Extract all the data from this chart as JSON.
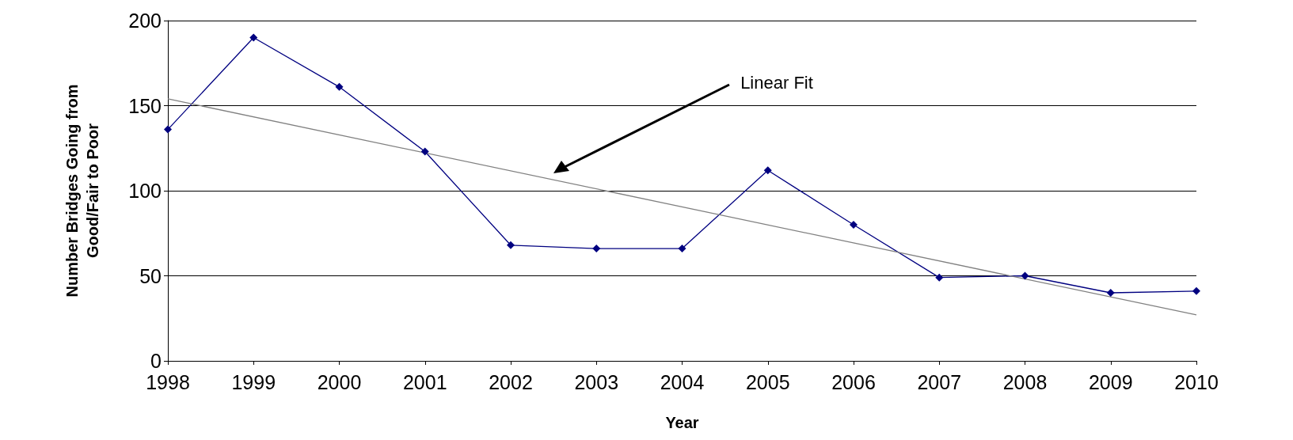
{
  "chart_data": {
    "type": "line",
    "xlabel": "Year",
    "ylabel": "Number Bridges Going from Good/Fair to Poor",
    "x": [
      1998,
      1999,
      2000,
      2001,
      2002,
      2003,
      2004,
      2005,
      2006,
      2007,
      2008,
      2009,
      2010
    ],
    "series": [
      {
        "color": "#000080",
        "marker": "diamond",
        "values": [
          136,
          190,
          161,
          123,
          68,
          66,
          66,
          112,
          80,
          49,
          50,
          40,
          41
        ]
      },
      {
        "type": "line",
        "color": "#808080",
        "marker": "none",
        "x": [
          1998,
          2010
        ],
        "values": [
          154,
          27
        ]
      }
    ],
    "xlim": [
      1998,
      2010
    ],
    "xticks": [
      1998,
      1999,
      2000,
      2001,
      2002,
      2003,
      2004,
      2005,
      2006,
      2007,
      2008,
      2009,
      2010
    ],
    "ylim": [
      0,
      200
    ],
    "yticks": [
      0,
      50,
      100,
      150,
      200
    ],
    "grid": "y",
    "annotations": [
      "Linear Fit"
    ]
  }
}
